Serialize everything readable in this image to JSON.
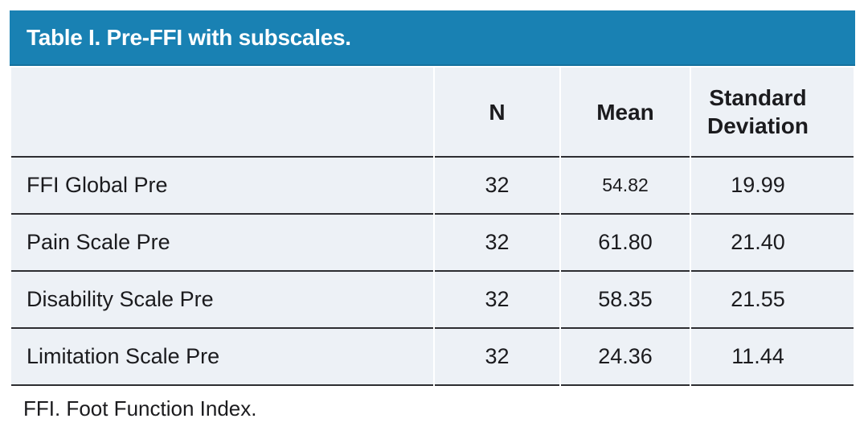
{
  "table": {
    "title": "Table I. Pre-FFI with subscales.",
    "columns": {
      "label": "",
      "n": "N",
      "mean": "Mean",
      "sd": "Standard Deviation"
    },
    "rows": [
      {
        "label": "FFI Global Pre",
        "n": "32",
        "mean": "54.82",
        "sd": "19.99"
      },
      {
        "label": "Pain Scale Pre",
        "n": "32",
        "mean": "61.80",
        "sd": "21.40"
      },
      {
        "label": "Disability Scale Pre",
        "n": "32",
        "mean": "58.35",
        "sd": "21.55"
      },
      {
        "label": "Limitation Scale Pre",
        "n": "32",
        "mean": "24.36",
        "sd": "11.44"
      }
    ],
    "footnote": "FFI. Foot Function Index."
  },
  "colors": {
    "title_bar_bg": "#1981b3",
    "row_bg": "#edf1f6",
    "rule": "#2d2d31",
    "title_text": "#ffffff",
    "body_text": "#1b1b1e"
  },
  "chart_data": {
    "type": "table",
    "title": "Table I. Pre-FFI with subscales.",
    "columns": [
      "",
      "N",
      "Mean",
      "Standard Deviation"
    ],
    "rows": [
      [
        "FFI Global Pre",
        32,
        54.82,
        19.99
      ],
      [
        "Pain Scale Pre",
        32,
        61.8,
        21.4
      ],
      [
        "Disability Scale Pre",
        32,
        58.35,
        21.55
      ],
      [
        "Limitation Scale Pre",
        32,
        24.36,
        11.44
      ]
    ],
    "footnote": "FFI. Foot Function Index."
  }
}
